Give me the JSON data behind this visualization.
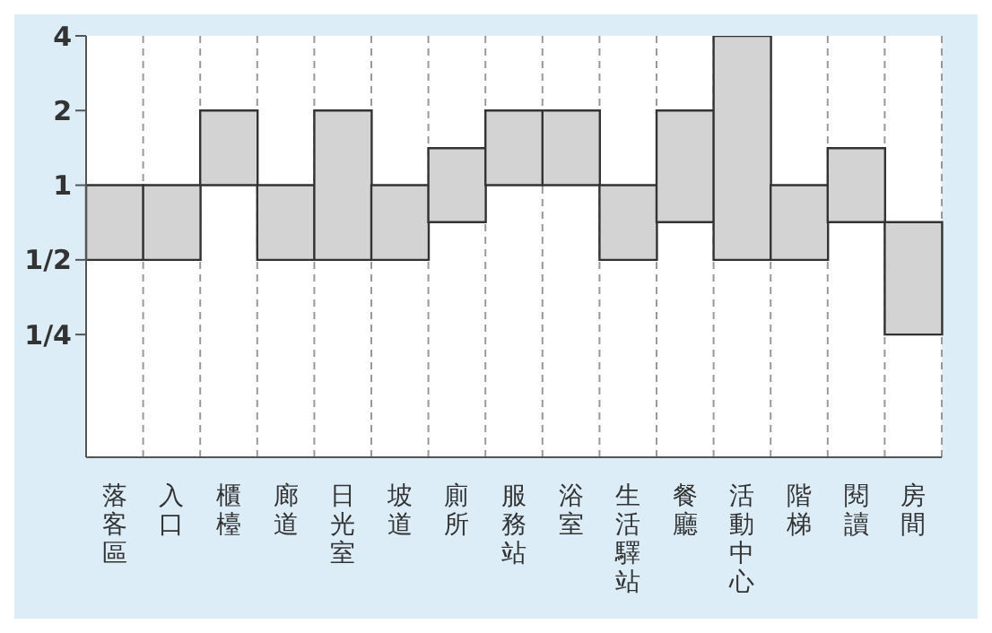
{
  "chart_data": {
    "type": "bar",
    "categories": [
      "落客區",
      "入口",
      "櫃檯",
      "廊道",
      "日光室",
      "坡道",
      "廁所",
      "服務站",
      "浴室",
      "生活驛站",
      "餐廳",
      "活動中心",
      "階梯",
      "閱讀",
      "房間"
    ],
    "base": [
      0.5,
      0.5,
      1,
      0.5,
      0.5,
      0.5,
      0.71,
      1,
      1,
      0.5,
      0.71,
      0.5,
      0.5,
      0.71,
      0.25
    ],
    "values": [
      0.5,
      0.5,
      1,
      0.5,
      1.5,
      0.5,
      0.7,
      1,
      1,
      0.5,
      1.29,
      3.5,
      0.5,
      0.7,
      0.46
    ],
    "color": "#d3d3d3",
    "log": "y",
    "ylim": [
      0.08,
      4
    ],
    "yticks": [
      {
        "value": 0.25,
        "label": "1/4"
      },
      {
        "value": 0.5,
        "label": "1/2"
      },
      1,
      2,
      4
    ],
    "grid": "x"
  }
}
